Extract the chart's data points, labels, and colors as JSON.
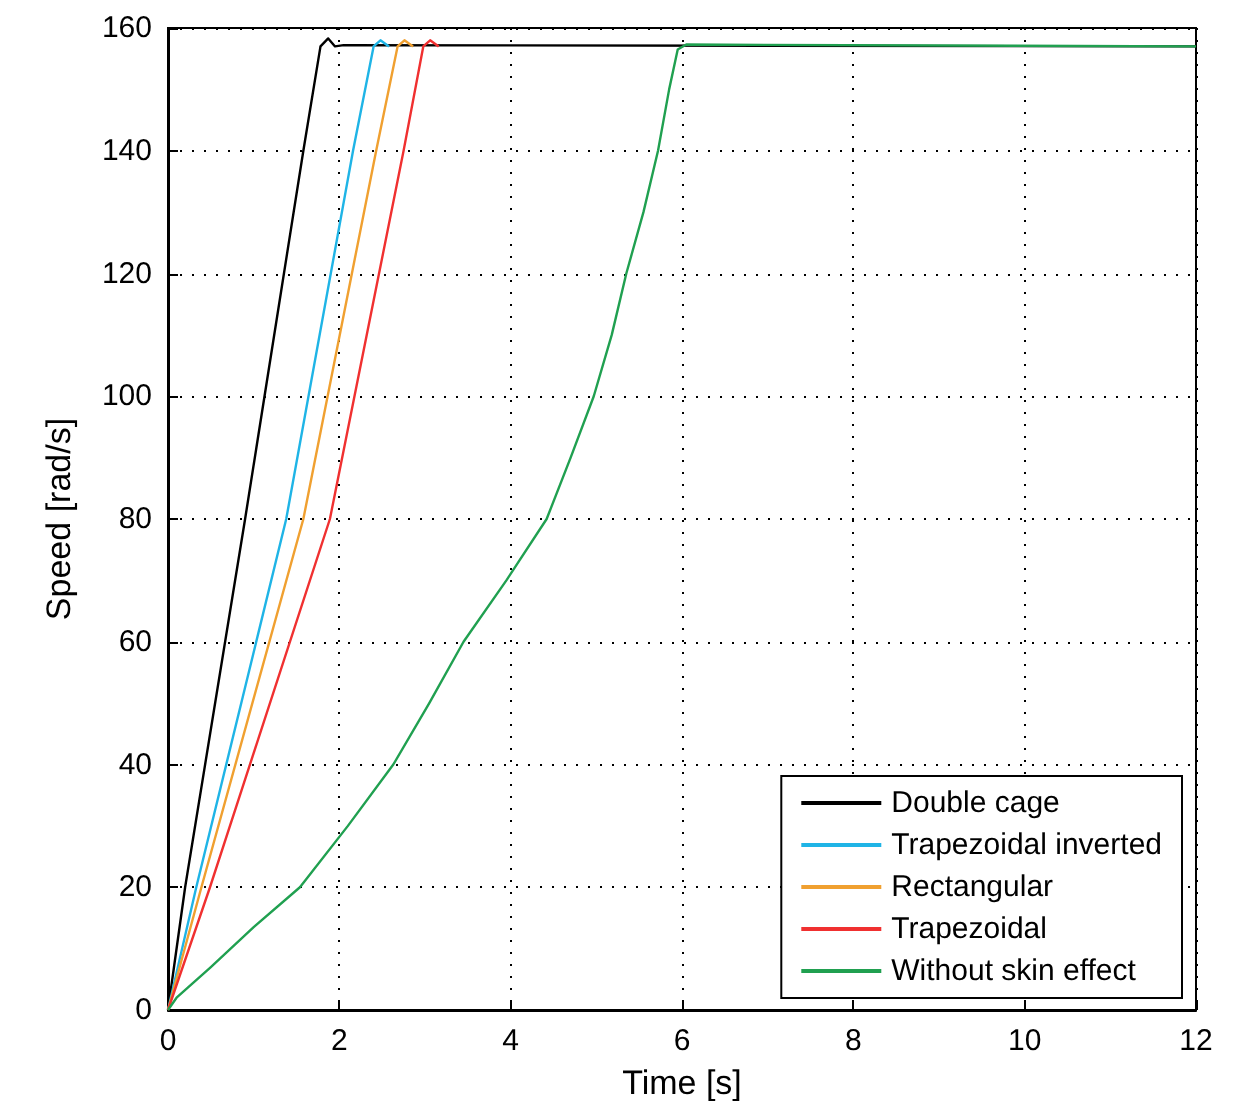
{
  "chart_data": {
    "type": "line",
    "xlabel": "Time [s]",
    "ylabel": "Speed [rad/s]",
    "xlim": [
      0,
      12
    ],
    "xticks": [
      0,
      2,
      4,
      6,
      8,
      10,
      12
    ],
    "ylim": [
      0,
      160
    ],
    "yticks": [
      0,
      20,
      40,
      60,
      80,
      100,
      120,
      140,
      160
    ],
    "grid": true,
    "legend": "bottom right",
    "line_style": "solid",
    "marker": "none",
    "series": [
      {
        "name": "Double cage",
        "color": "#000000",
        "x": [
          0,
          0.2,
          0.9,
          1.58,
          1.78,
          1.87,
          1.95,
          2.05,
          12
        ],
        "values": [
          0,
          20,
          80,
          140,
          157,
          158.3,
          157,
          157.2,
          157
        ]
      },
      {
        "name": "Trapezoidal inverted",
        "color": "#1fb4e6",
        "x": [
          0,
          0.33,
          1.38,
          2.16,
          2.4,
          2.48,
          2.58
        ],
        "values": [
          0,
          20,
          80,
          140,
          157,
          158,
          157
        ]
      },
      {
        "name": "Rectangular",
        "color": "#f0a030",
        "x": [
          0,
          0.39,
          1.58,
          2.43,
          2.68,
          2.76,
          2.86
        ],
        "values": [
          0,
          20,
          80,
          140,
          157,
          158,
          157
        ]
      },
      {
        "name": "Trapezoidal",
        "color": "#f03030",
        "x": [
          0,
          0.49,
          1.89,
          2.75,
          2.98,
          3.06,
          3.16
        ],
        "values": [
          0,
          20,
          80,
          140,
          157,
          158,
          157
        ]
      },
      {
        "name": "Without skin effect",
        "color": "#20a050",
        "x": [
          0,
          0.1,
          0.5,
          1,
          1.54,
          2.1,
          2.63,
          3.05,
          3.45,
          3.95,
          4.42,
          4.7,
          4.97,
          5.18,
          5.35,
          5.55,
          5.72,
          5.85,
          5.95,
          6.05,
          12
        ],
        "values": [
          0,
          2,
          7,
          13.5,
          20,
          30,
          40,
          50,
          60,
          70,
          80,
          90,
          100,
          110,
          120,
          130,
          140,
          150,
          156.5,
          157.3,
          157
        ]
      }
    ]
  }
}
